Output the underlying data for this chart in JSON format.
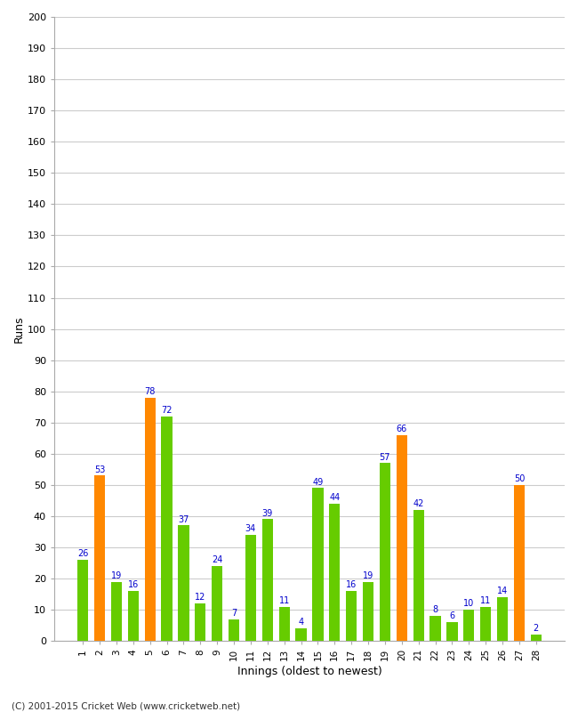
{
  "innings": [
    1,
    2,
    3,
    4,
    5,
    6,
    7,
    8,
    9,
    10,
    11,
    12,
    13,
    14,
    15,
    16,
    17,
    18,
    19,
    20,
    21,
    22,
    23,
    24,
    25,
    26,
    27,
    28
  ],
  "values": [
    26,
    53,
    19,
    16,
    78,
    72,
    37,
    12,
    24,
    7,
    34,
    39,
    11,
    4,
    49,
    44,
    16,
    19,
    57,
    66,
    42,
    8,
    6,
    10,
    11,
    14,
    50,
    2
  ],
  "colors": [
    "#66cc00",
    "#ff8800",
    "#66cc00",
    "#66cc00",
    "#ff8800",
    "#66cc00",
    "#66cc00",
    "#66cc00",
    "#66cc00",
    "#66cc00",
    "#66cc00",
    "#66cc00",
    "#66cc00",
    "#66cc00",
    "#66cc00",
    "#66cc00",
    "#66cc00",
    "#66cc00",
    "#66cc00",
    "#ff8800",
    "#66cc00",
    "#66cc00",
    "#66cc00",
    "#66cc00",
    "#66cc00",
    "#66cc00",
    "#ff8800",
    "#66cc00"
  ],
  "xlabel": "Innings (oldest to newest)",
  "ylabel": "Runs",
  "ylim": [
    0,
    200
  ],
  "yticks": [
    0,
    10,
    20,
    30,
    40,
    50,
    60,
    70,
    80,
    90,
    100,
    110,
    120,
    130,
    140,
    150,
    160,
    170,
    180,
    190,
    200
  ],
  "background_color": "#ffffff",
  "plot_bg_color": "#ffffff",
  "grid_color": "#cccccc",
  "label_color": "#0000cc",
  "footer": "(C) 2001-2015 Cricket Web (www.cricketweb.net)"
}
